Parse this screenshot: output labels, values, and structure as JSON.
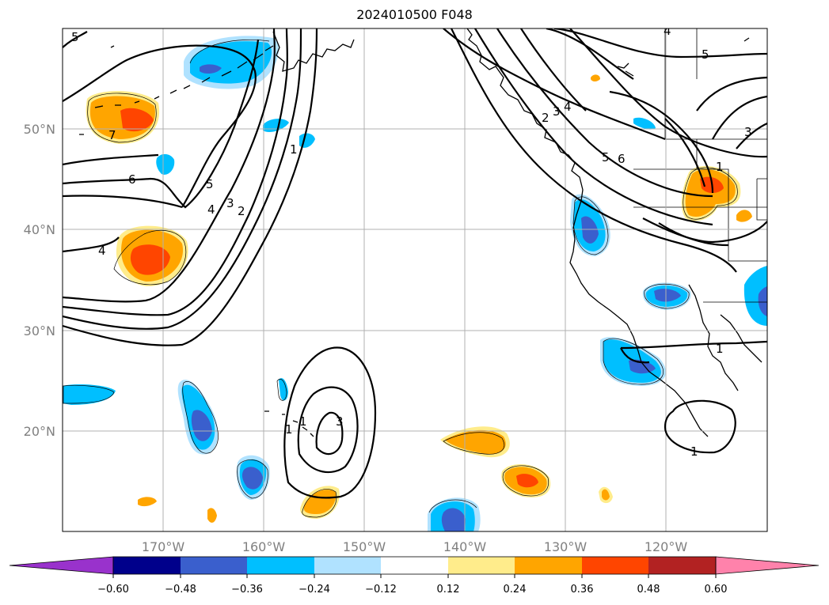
{
  "title": "2024010500 F048",
  "lat_labels": [
    "20°N",
    "30°N",
    "40°N",
    "50°N"
  ],
  "lon_labels": [
    "170°W",
    "160°W",
    "150°W",
    "140°W",
    "130°W",
    "120°W"
  ],
  "colorbar": {
    "ticks": [
      "−0.60",
      "−0.48",
      "−0.36",
      "−0.24",
      "−0.12",
      "0.12",
      "0.24",
      "0.36",
      "0.48",
      "0.60"
    ],
    "colors": [
      "#9932cc",
      "#00008b",
      "#3a5fcd",
      "#00bfff",
      "#b0e2ff",
      "#ffffff",
      "#ffec8b",
      "#ffa500",
      "#ff4500",
      "#b22222",
      "#ff82ab"
    ]
  },
  "contour_labels": [
    "5",
    "4",
    "7",
    "6",
    "5",
    "4",
    "3",
    "2",
    "1",
    "1",
    "3",
    "1",
    "2",
    "3",
    "4",
    "5",
    "6",
    "3",
    "1",
    "1",
    "4",
    "5",
    "1"
  ],
  "map": {
    "lat_range": [
      10,
      60
    ],
    "lon_range": [
      -180,
      -110
    ],
    "gridlines": true
  }
}
